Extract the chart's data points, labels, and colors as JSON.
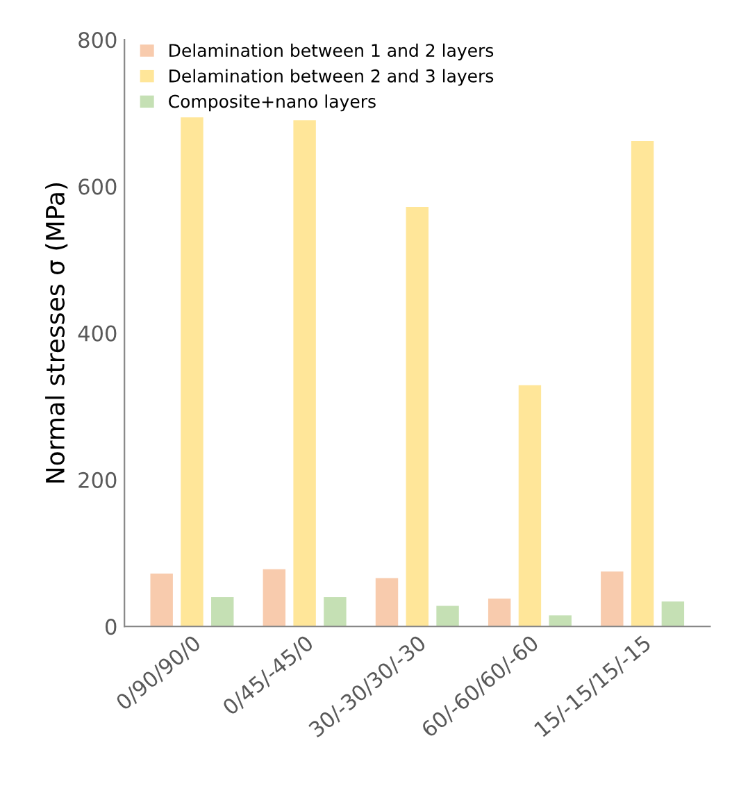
{
  "chart_data": {
    "type": "bar",
    "ylabel": "Normal stresses σ (MPa)",
    "categories": [
      "0/90/90/0",
      "0/45/-45/0",
      "30/-30/30/-30",
      "60/-60/60/-60",
      "15/-15/15/-15"
    ],
    "series": [
      {
        "name": "Delamination between 1 and 2 layers",
        "color": "#f8cbad",
        "values": [
          72,
          78,
          66,
          38,
          75
        ]
      },
      {
        "name": "Delamination between 2 and 3 layers",
        "color": "#ffe699",
        "values": [
          694,
          690,
          572,
          329,
          662
        ]
      },
      {
        "name": "Composite+nano layers",
        "color": "#c5e0b4",
        "values": [
          40,
          40,
          28,
          15,
          34
        ]
      }
    ],
    "ylim": [
      0,
      800
    ],
    "yticks": [
      0,
      200,
      400,
      600,
      800
    ],
    "grid": false,
    "legend": "top left"
  }
}
